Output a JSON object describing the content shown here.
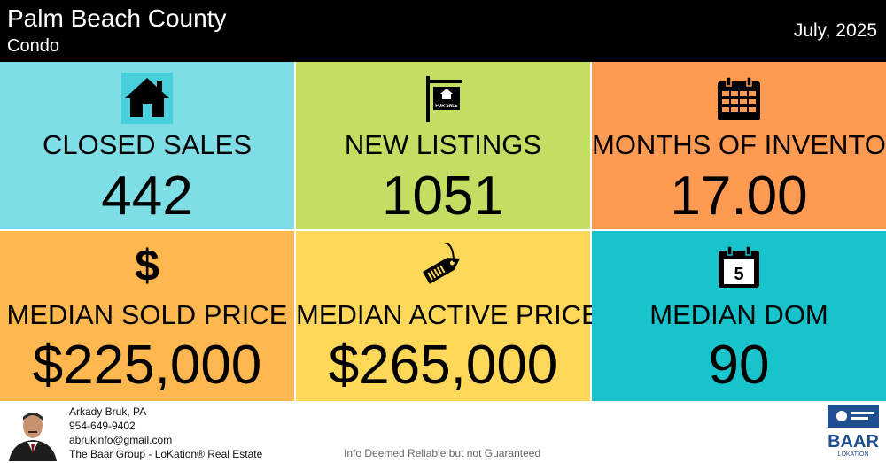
{
  "header": {
    "title": "Palm Beach County",
    "subtitle": "Condo",
    "date": "July, 2025"
  },
  "tiles": [
    {
      "label": "CLOSED SALES",
      "value": "442",
      "icon": "house-icon",
      "color": "#7fdde6"
    },
    {
      "label": "NEW LISTINGS",
      "value": "1051",
      "icon": "for-sale-sign-icon",
      "color": "#c4dd63",
      "sign_text": "FOR SALE"
    },
    {
      "label": "MONTHS OF INVENTORY",
      "value": "17.00",
      "icon": "calendar-icon",
      "color": "#ff9a52"
    },
    {
      "label": "MEDIAN SOLD PRICE",
      "value": "$225,000",
      "icon": "dollar-icon",
      "color": "#ffb850",
      "glyph": "$"
    },
    {
      "label": "MEDIAN ACTIVE PRICE",
      "value": "$265,000",
      "icon": "price-tag-icon",
      "color": "#ffd85a"
    },
    {
      "label": "MEDIAN DOM",
      "value": "90",
      "icon": "calendar-day-icon",
      "color": "#18c3cc",
      "day": "5"
    }
  ],
  "footer": {
    "name": "Arkady Bruk, PA",
    "phone": "954-649-9402",
    "email": "abrukinfo@gmail.com",
    "company": "The Baar Group - LoKation® Real Estate",
    "disclaimer": "Info Deemed Reliable but not Guaranteed",
    "logo_text": "BAAR",
    "logo_subtext": "LOKATION"
  }
}
